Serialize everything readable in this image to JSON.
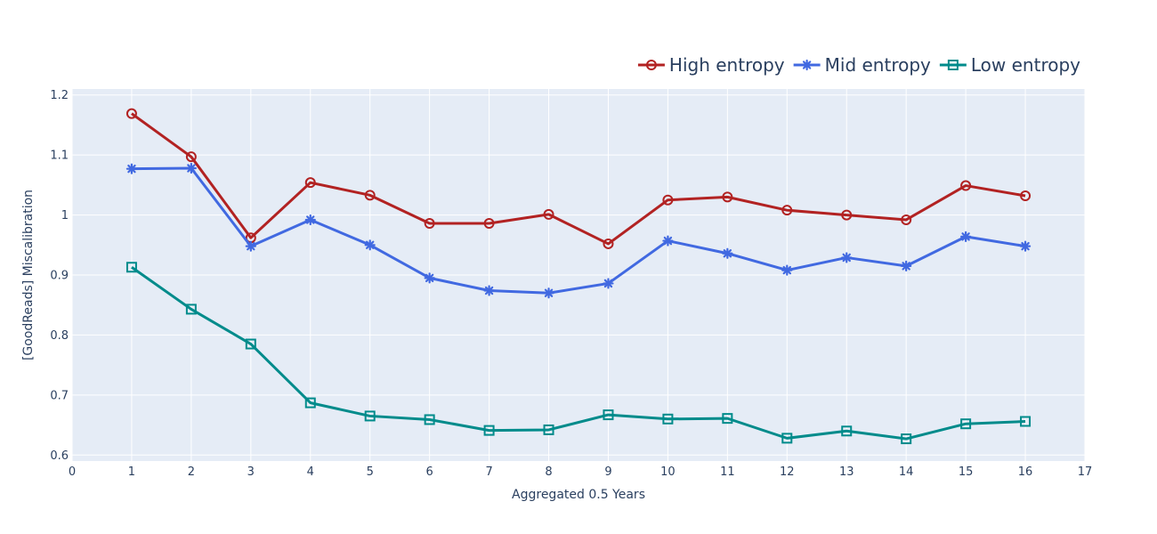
{
  "chart_data": {
    "type": "line",
    "xlabel": "Aggregated 0.5 Years",
    "ylabel": "[GoodReads] Miscalibration",
    "xlim": [
      0,
      17
    ],
    "ylim": [
      0.59,
      1.21
    ],
    "xticks": [
      0,
      1,
      2,
      3,
      4,
      5,
      6,
      7,
      8,
      9,
      10,
      11,
      12,
      13,
      14,
      15,
      16,
      17
    ],
    "yticks": [
      0.6,
      0.7,
      0.8,
      0.9,
      1.0,
      1.1,
      1.2
    ],
    "ytick_labels": [
      "0.6",
      "0.7",
      "0.8",
      "0.9",
      "1",
      "1.1",
      "1.2"
    ],
    "grid": true,
    "legend_position": "top-right",
    "background": "#e5ecf6",
    "x": [
      1,
      2,
      3,
      4,
      5,
      6,
      7,
      8,
      9,
      10,
      11,
      12,
      13,
      14,
      15,
      16
    ],
    "series": [
      {
        "name": "High entropy",
        "color": "#b22222",
        "marker": "circle-open",
        "values": [
          1.169,
          1.097,
          0.962,
          1.054,
          1.033,
          0.986,
          0.986,
          1.001,
          0.952,
          1.025,
          1.03,
          1.008,
          1.0,
          0.992,
          1.049,
          1.032
        ]
      },
      {
        "name": "Mid entropy",
        "color": "#4169e1",
        "marker": "asterisk",
        "values": [
          1.077,
          1.078,
          0.948,
          0.992,
          0.95,
          0.895,
          0.874,
          0.87,
          0.886,
          0.957,
          0.936,
          0.908,
          0.929,
          0.915,
          0.964,
          0.948
        ]
      },
      {
        "name": "Low entropy",
        "color": "#008b8b",
        "marker": "square-open",
        "values": [
          0.913,
          0.843,
          0.785,
          0.687,
          0.665,
          0.659,
          0.641,
          0.642,
          0.667,
          0.66,
          0.661,
          0.628,
          0.64,
          0.627,
          0.652,
          0.656
        ]
      }
    ]
  }
}
